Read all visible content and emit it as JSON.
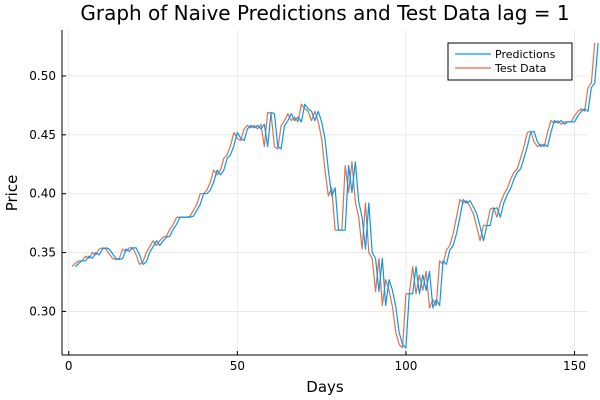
{
  "chart_data": {
    "type": "line",
    "title": "Graph of Naive Predictions and Test Data lag = 1",
    "xlabel": "Days",
    "ylabel": "Price",
    "xlim": [
      -2,
      154
    ],
    "ylim": [
      0.263,
      0.539
    ],
    "xticks": [
      0,
      50,
      100,
      150
    ],
    "xtick_labels": [
      "0",
      "50",
      "100",
      "150"
    ],
    "yticks": [
      0.3,
      0.35,
      0.4,
      0.45,
      0.5
    ],
    "ytick_labels": [
      "0.30",
      "0.35",
      "0.40",
      "0.45",
      "0.50"
    ],
    "grid": true,
    "legend_position": "top-right",
    "colors": {
      "Predictions": "#009af9",
      "Test Data": "#e26f46"
    },
    "test_data": [
      0.338,
      0.341,
      0.343,
      0.343,
      0.347,
      0.345,
      0.35,
      0.348,
      0.353,
      0.354,
      0.353,
      0.349,
      0.345,
      0.344,
      0.345,
      0.353,
      0.351,
      0.354,
      0.354,
      0.348,
      0.34,
      0.342,
      0.35,
      0.355,
      0.36,
      0.356,
      0.36,
      0.363,
      0.364,
      0.37,
      0.374,
      0.38,
      0.38,
      0.38,
      0.38,
      0.381,
      0.386,
      0.391,
      0.4,
      0.4,
      0.403,
      0.41,
      0.42,
      0.416,
      0.42,
      0.43,
      0.433,
      0.441,
      0.452,
      0.447,
      0.445,
      0.455,
      0.458,
      0.456,
      0.458,
      0.455,
      0.459,
      0.44,
      0.469,
      0.468,
      0.44,
      0.438,
      0.458,
      0.462,
      0.468,
      0.462,
      0.465,
      0.461,
      0.476,
      0.472,
      0.47,
      0.462,
      0.47,
      0.461,
      0.447,
      0.42,
      0.398,
      0.405,
      0.369,
      0.369,
      0.369,
      0.424,
      0.401,
      0.427,
      0.393,
      0.38,
      0.353,
      0.392,
      0.35,
      0.345,
      0.317,
      0.345,
      0.305,
      0.327,
      0.318,
      0.304,
      0.282,
      0.272,
      0.269,
      0.315,
      0.315,
      0.338,
      0.315,
      0.331,
      0.318,
      0.334,
      0.303,
      0.31,
      0.305,
      0.343,
      0.34,
      0.352,
      0.356,
      0.366,
      0.38,
      0.395,
      0.392,
      0.394,
      0.389,
      0.383,
      0.372,
      0.36,
      0.373,
      0.373,
      0.387,
      0.388,
      0.38,
      0.392,
      0.399,
      0.404,
      0.412,
      0.418,
      0.421,
      0.43,
      0.44,
      0.452,
      0.453,
      0.444,
      0.44,
      0.442,
      0.44,
      0.452,
      0.462,
      0.46,
      0.462,
      0.459,
      0.461,
      0.461,
      0.461,
      0.466,
      0.47,
      0.472,
      0.47,
      0.49,
      0.494,
      0.528
    ],
    "series": [
      {
        "name": "Predictions",
        "x_start": 2,
        "lag": 1
      },
      {
        "name": "Test Data",
        "x_start": 1
      }
    ]
  }
}
